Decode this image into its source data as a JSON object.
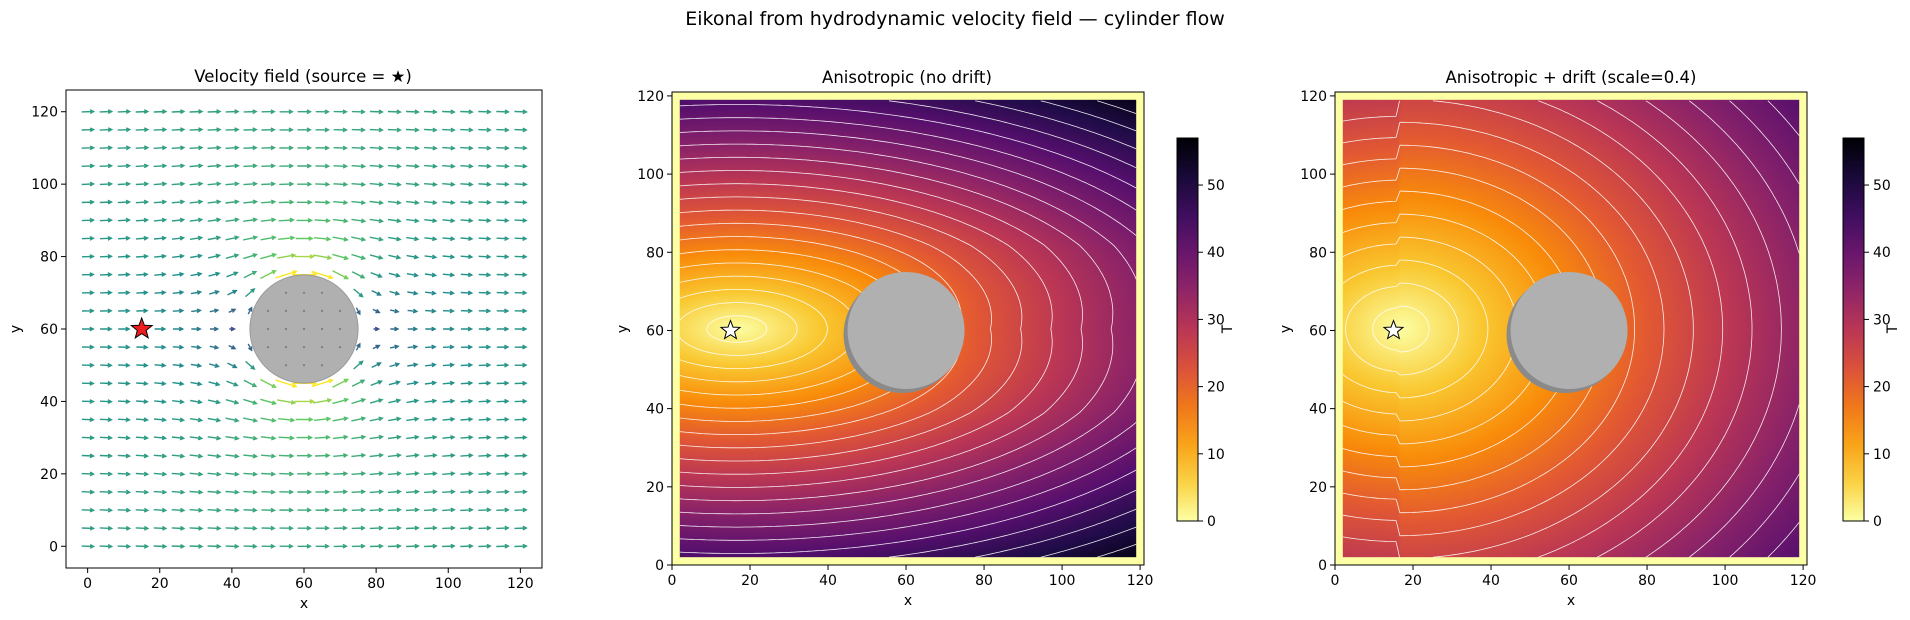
{
  "figure": {
    "suptitle": "Eikonal from hydrodynamic velocity field — cylinder flow"
  },
  "chart_data": [
    {
      "type": "quiver",
      "title": "Velocity field (source = ★)",
      "xlabel": "x",
      "ylabel": "y",
      "xlim": [
        -6,
        126
      ],
      "ylim": [
        -6,
        126
      ],
      "xticks": [
        0,
        20,
        40,
        60,
        80,
        100,
        120
      ],
      "yticks": [
        0,
        20,
        40,
        60,
        80,
        100,
        120
      ],
      "grid_spacing": 5,
      "flow": "uniform flow in +x around a cylinder",
      "colormap": "viridis",
      "cylinder": {
        "center": [
          60,
          60
        ],
        "radius": 15,
        "color": "#b0b0b0"
      },
      "source": {
        "x": 15,
        "y": 60,
        "marker": "star",
        "color": "#ee1c1c"
      }
    },
    {
      "type": "heatmap",
      "title": "Anisotropic (no drift)",
      "xlabel": "x",
      "ylabel": "y",
      "xlim": [
        0,
        121
      ],
      "ylim": [
        0,
        121
      ],
      "xticks": [
        0,
        20,
        40,
        60,
        80,
        100,
        120
      ],
      "yticks": [
        0,
        20,
        40,
        60,
        80,
        100,
        120
      ],
      "colormap": "inferno_r",
      "colorbar": {
        "label": "T",
        "ticks": [
          0,
          10,
          20,
          30,
          40,
          50
        ],
        "range": [
          0,
          57
        ]
      },
      "contour_color": "#ffffff",
      "contour_step": 2.5,
      "value_range": [
        0,
        57
      ],
      "cylinder": {
        "center": [
          60,
          60
        ],
        "radius": 15,
        "color": "#b0b0b0"
      },
      "source": {
        "x": 15,
        "y": 60,
        "marker": "star",
        "color": "#ffffff"
      }
    },
    {
      "type": "heatmap",
      "title": "Anisotropic + drift (scale=0.4)",
      "xlabel": "x",
      "ylabel": "y",
      "xlim": [
        0,
        121
      ],
      "ylim": [
        0,
        121
      ],
      "xticks": [
        0,
        20,
        40,
        60,
        80,
        100,
        120
      ],
      "yticks": [
        0,
        20,
        40,
        60,
        80,
        100,
        120
      ],
      "colormap": "inferno_r",
      "colorbar": {
        "label": "T",
        "ticks": [
          0,
          10,
          20,
          30,
          40,
          50
        ],
        "range": [
          0,
          57
        ]
      },
      "contour_color": "#ffffff",
      "contour_step": 2.5,
      "value_range": [
        0,
        42
      ],
      "cylinder": {
        "center": [
          60,
          60
        ],
        "radius": 15,
        "color": "#b0b0b0"
      },
      "source": {
        "x": 15,
        "y": 60,
        "marker": "star",
        "color": "#ffffff"
      }
    }
  ]
}
